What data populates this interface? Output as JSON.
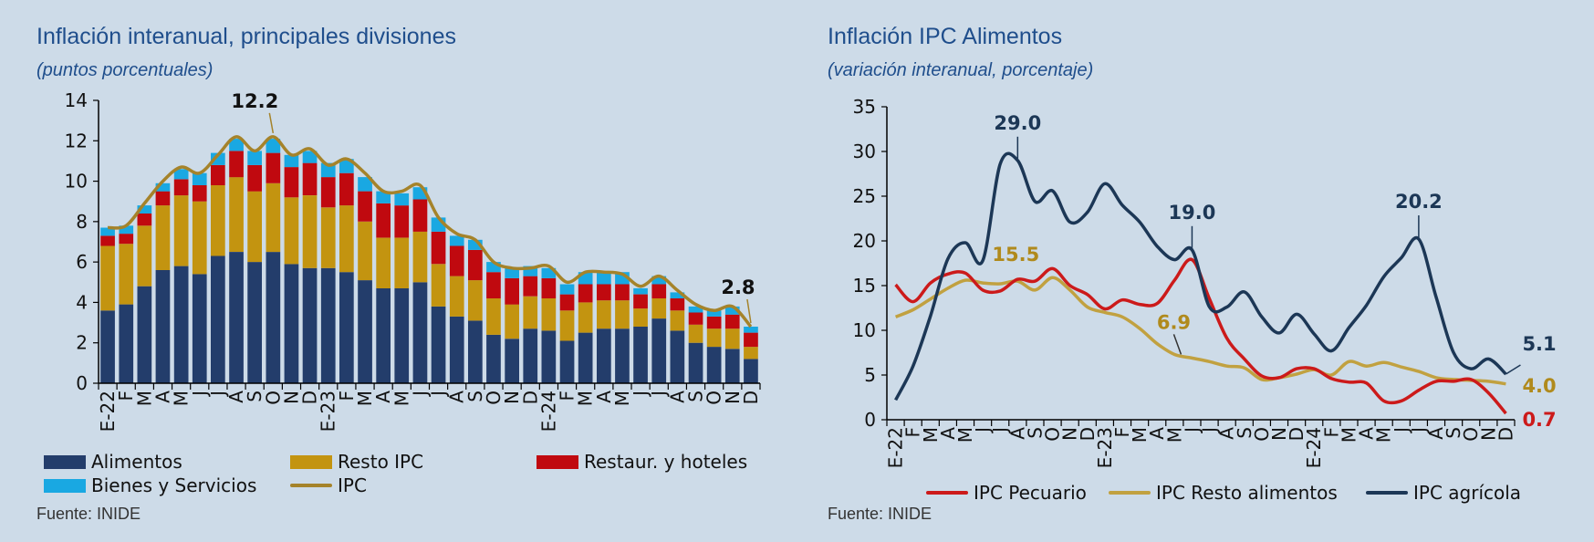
{
  "left_panel": {
    "title": "Inflación interanual, principales divisiones",
    "subtitle": "(puntos porcentuales)",
    "source": "Fuente: INIDE"
  },
  "right_panel": {
    "title": "Inflación IPC Alimentos",
    "subtitle": "(variación interanual, porcentaje)",
    "source": "Fuente: INIDE"
  },
  "colors": {
    "alimentos": "#233d6b",
    "resto_ipc": "#c39410",
    "restaur": "#c0090f",
    "bienes": "#19a8e2",
    "ipc_line": "#a5832a",
    "pecuario": "#cc1a1a",
    "resto_alimentos": "#c1a140",
    "agricola": "#1c3756",
    "background": "#cddbe8"
  },
  "chart_data": [
    {
      "type": "bar",
      "stacked": true,
      "title": "Inflación interanual, principales divisiones",
      "subtitle": "(puntos porcentuales)",
      "ylim": [
        0,
        14
      ],
      "yticks": [
        0,
        2,
        4,
        6,
        8,
        10,
        12,
        14
      ],
      "categories": [
        "E-22",
        "F",
        "M",
        "A",
        "M",
        "J",
        "J",
        "A",
        "S",
        "O",
        "N",
        "D",
        "E-23",
        "F",
        "M",
        "A",
        "M",
        "J",
        "J",
        "A",
        "S",
        "O",
        "N",
        "D",
        "E-24",
        "F",
        "M",
        "A",
        "M",
        "J",
        "J",
        "A",
        "S",
        "O",
        "N",
        "D"
      ],
      "series": [
        {
          "name": "Alimentos",
          "values": [
            3.6,
            3.9,
            4.8,
            5.6,
            5.8,
            5.4,
            6.3,
            6.5,
            6.0,
            6.5,
            5.9,
            5.7,
            5.7,
            5.5,
            5.1,
            4.7,
            4.7,
            5.0,
            3.8,
            3.3,
            3.1,
            2.4,
            2.2,
            2.7,
            2.6,
            2.1,
            2.5,
            2.7,
            2.7,
            2.8,
            3.2,
            2.6,
            2.0,
            1.8,
            1.7,
            1.2
          ]
        },
        {
          "name": "Resto IPC",
          "values": [
            3.2,
            3.0,
            3.0,
            3.2,
            3.5,
            3.6,
            3.5,
            3.7,
            3.5,
            3.4,
            3.3,
            3.6,
            3.0,
            3.3,
            2.9,
            2.5,
            2.5,
            2.5,
            2.1,
            2.0,
            2.0,
            1.8,
            1.7,
            1.6,
            1.6,
            1.5,
            1.5,
            1.4,
            1.4,
            0.9,
            1.0,
            1.0,
            0.9,
            0.9,
            1.0,
            0.6
          ]
        },
        {
          "name": "Restaur. y hoteles",
          "values": [
            0.5,
            0.5,
            0.6,
            0.7,
            0.8,
            0.8,
            1.0,
            1.3,
            1.3,
            1.5,
            1.5,
            1.6,
            1.5,
            1.6,
            1.5,
            1.7,
            1.6,
            1.6,
            1.6,
            1.5,
            1.5,
            1.3,
            1.3,
            1.0,
            1.0,
            0.8,
            0.9,
            0.8,
            0.8,
            0.7,
            0.7,
            0.6,
            0.6,
            0.6,
            0.7,
            0.7
          ]
        },
        {
          "name": "Bienes y Servicios",
          "values": [
            0.4,
            0.4,
            0.4,
            0.4,
            0.5,
            0.6,
            0.6,
            0.6,
            0.7,
            0.7,
            0.6,
            0.6,
            0.7,
            0.7,
            0.7,
            0.6,
            0.6,
            0.6,
            0.7,
            0.5,
            0.5,
            0.5,
            0.5,
            0.5,
            0.5,
            0.5,
            0.6,
            0.6,
            0.6,
            0.3,
            0.4,
            0.3,
            0.3,
            0.3,
            0.4,
            0.3
          ]
        }
      ],
      "line": {
        "name": "IPC",
        "values": [
          7.7,
          7.8,
          8.9,
          10.0,
          10.7,
          10.4,
          11.3,
          12.2,
          11.5,
          12.2,
          11.3,
          11.6,
          10.8,
          11.1,
          10.4,
          9.5,
          9.5,
          9.8,
          8.2,
          7.4,
          7.1,
          6.0,
          5.7,
          5.7,
          5.8,
          5.0,
          5.5,
          5.5,
          5.4,
          4.8,
          5.3,
          4.6,
          3.9,
          3.6,
          3.8,
          2.8
        ]
      },
      "annotations": [
        {
          "text": "12.2",
          "index": 9
        },
        {
          "text": "2.8",
          "index": 35
        }
      ],
      "legend": [
        "Alimentos",
        "Resto IPC",
        "Restaur. y hoteles",
        "Bienes y Servicios",
        "IPC"
      ]
    },
    {
      "type": "line",
      "title": "Inflación IPC Alimentos",
      "subtitle": "(variación interanual, porcentaje)",
      "ylim": [
        0,
        35
      ],
      "yticks": [
        0,
        5,
        10,
        15,
        20,
        25,
        30,
        35
      ],
      "categories": [
        "E-22",
        "F",
        "M",
        "A",
        "M",
        "J",
        "J",
        "A",
        "S",
        "O",
        "N",
        "D",
        "E-23",
        "F",
        "M",
        "A",
        "M",
        "J",
        "J",
        "A",
        "S",
        "O",
        "N",
        "D",
        "E-24",
        "F",
        "M",
        "A",
        "M",
        "J",
        "J",
        "A",
        "S",
        "O",
        "N",
        "D"
      ],
      "series": [
        {
          "name": "IPC Pecuario",
          "values": [
            15.1,
            13.2,
            15.3,
            16.3,
            16.4,
            14.5,
            14.4,
            15.7,
            15.5,
            16.9,
            15.0,
            14.0,
            12.4,
            13.4,
            12.9,
            13.0,
            15.6,
            17.9,
            13.5,
            9.1,
            6.8,
            4.9,
            4.7,
            5.7,
            5.7,
            4.6,
            4.2,
            4.1,
            2.1,
            2.1,
            3.3,
            4.3,
            4.3,
            4.5,
            3.0,
            0.7
          ]
        },
        {
          "name": "IPC Resto alimentos",
          "values": [
            11.5,
            12.3,
            13.5,
            14.7,
            15.6,
            15.3,
            15.2,
            15.5,
            14.5,
            15.9,
            14.5,
            12.6,
            12.0,
            11.5,
            10.2,
            8.5,
            7.3,
            6.9,
            6.5,
            6.0,
            5.8,
            4.5,
            4.7,
            5.1,
            5.6,
            5.0,
            6.5,
            6.0,
            6.4,
            5.9,
            5.4,
            4.7,
            4.5,
            4.4,
            4.3,
            4.0
          ]
        },
        {
          "name": "IPC agrícola",
          "values": [
            2.2,
            6.0,
            11.6,
            18.0,
            19.8,
            17.8,
            28.6,
            29.0,
            24.4,
            25.6,
            22.1,
            23.2,
            26.4,
            24.0,
            22.1,
            19.4,
            17.9,
            19.0,
            12.6,
            12.6,
            14.3,
            11.5,
            9.7,
            11.8,
            9.6,
            7.7,
            10.3,
            12.8,
            16.0,
            18.1,
            20.2,
            13.7,
            7.5,
            5.7,
            6.8,
            5.1
          ]
        }
      ],
      "annotations": [
        {
          "text": "29.0",
          "series": "IPC agrícola",
          "index": 7
        },
        {
          "text": "19.0",
          "series": "IPC agrícola",
          "index": 17
        },
        {
          "text": "20.2",
          "series": "IPC agrícola",
          "index": 30
        },
        {
          "text": "15.5",
          "series": "IPC Resto alimentos",
          "index": 7
        },
        {
          "text": "6.9",
          "series": "IPC Resto alimentos",
          "index": 17
        },
        {
          "text": "5.1",
          "series": "IPC agrícola",
          "index": 35
        },
        {
          "text": "4.0",
          "series": "IPC Resto alimentos",
          "index": 35
        },
        {
          "text": "0.7",
          "series": "IPC Pecuario",
          "index": 35
        }
      ],
      "legend": [
        "IPC Pecuario",
        "IPC Resto alimentos",
        "IPC agrícola"
      ]
    }
  ]
}
